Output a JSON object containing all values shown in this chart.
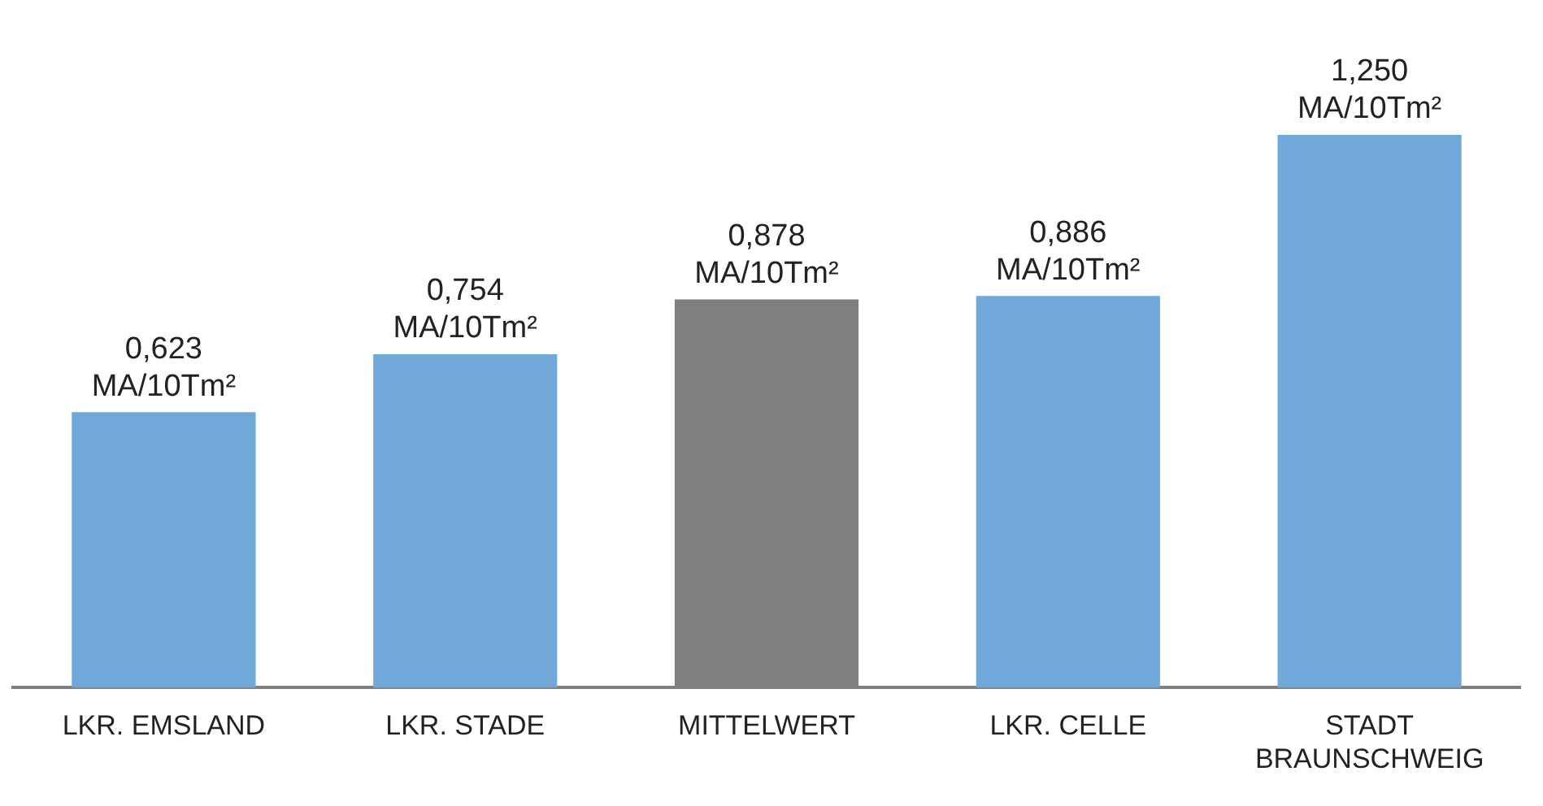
{
  "chart_data": {
    "type": "bar",
    "categories": [
      "LKR. EMSLAND",
      "LKR. STADE",
      "MITTELWERT",
      "LKR. CELLE",
      "STADT\nBRAUNSCHWEIG"
    ],
    "values": [
      0.623,
      0.754,
      0.878,
      0.886,
      1.25
    ],
    "colors": [
      "#70a8da",
      "#70a8da",
      "#7f7f7f",
      "#70a8da",
      "#70a8da"
    ],
    "value_labels": [
      "0,623\nMA/10Tm²",
      "0,754\nMA/10Tm²",
      "0,878\nMA/10Tm²",
      "0,886\nMA/10Tm²",
      "1,250\nMA/10Tm²"
    ],
    "ylim": [
      0,
      1.25
    ],
    "grid": false,
    "legend": false
  }
}
